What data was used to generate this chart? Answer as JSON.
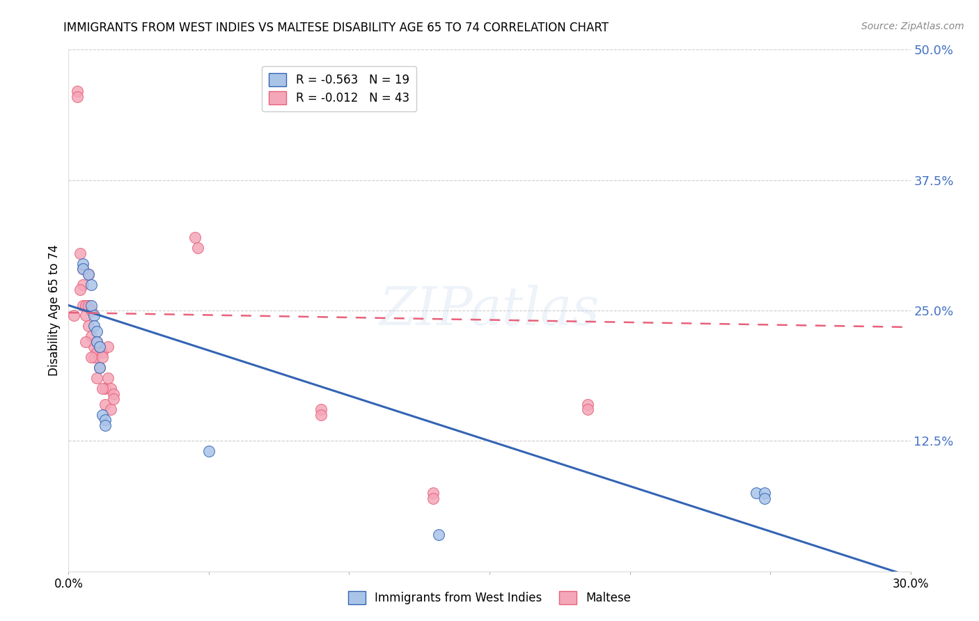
{
  "title": "IMMIGRANTS FROM WEST INDIES VS MALTESE DISABILITY AGE 65 TO 74 CORRELATION CHART",
  "source": "Source: ZipAtlas.com",
  "ylabel": "Disability Age 65 to 74",
  "xlim": [
    0.0,
    0.3
  ],
  "ylim": [
    0.0,
    0.5
  ],
  "yticks": [
    0.0,
    0.125,
    0.25,
    0.375,
    0.5
  ],
  "yticklabels": [
    "",
    "12.5%",
    "25.0%",
    "37.5%",
    "50.0%"
  ],
  "xticks": [
    0.0,
    0.05,
    0.1,
    0.15,
    0.2,
    0.25,
    0.3
  ],
  "xticklabels": [
    "0.0%",
    "",
    "",
    "",
    "",
    "",
    "30.0%"
  ],
  "west_indies_R": -0.563,
  "west_indies_N": 19,
  "maltese_R": -0.012,
  "maltese_N": 43,
  "west_indies_color": "#aac4e8",
  "maltese_color": "#f4a7b9",
  "west_indies_line_color": "#3464b4",
  "maltese_line_color": "#e8607a",
  "watermark": "ZIPatlas",
  "wi_line_x0": 0.0,
  "wi_line_y0": 0.255,
  "wi_line_x1": 0.3,
  "wi_line_y1": -0.005,
  "m_line_x0": 0.0,
  "m_line_y0": 0.248,
  "m_line_x1": 0.3,
  "m_line_y1": 0.234,
  "west_indies_x": [
    0.005,
    0.005,
    0.007,
    0.008,
    0.008,
    0.009,
    0.009,
    0.01,
    0.01,
    0.011,
    0.011,
    0.012,
    0.013,
    0.013,
    0.05,
    0.245,
    0.248,
    0.248,
    0.132
  ],
  "west_indies_y": [
    0.295,
    0.29,
    0.285,
    0.275,
    0.255,
    0.245,
    0.235,
    0.23,
    0.22,
    0.215,
    0.195,
    0.15,
    0.145,
    0.14,
    0.115,
    0.075,
    0.075,
    0.07,
    0.035
  ],
  "maltese_x": [
    0.003,
    0.003,
    0.004,
    0.005,
    0.005,
    0.005,
    0.006,
    0.006,
    0.007,
    0.007,
    0.007,
    0.008,
    0.008,
    0.009,
    0.009,
    0.01,
    0.01,
    0.011,
    0.011,
    0.012,
    0.012,
    0.013,
    0.013,
    0.014,
    0.014,
    0.015,
    0.016,
    0.045,
    0.046,
    0.09,
    0.09,
    0.13,
    0.13,
    0.185,
    0.185,
    0.002,
    0.004,
    0.006,
    0.008,
    0.01,
    0.012,
    0.015,
    0.016
  ],
  "maltese_y": [
    0.46,
    0.455,
    0.305,
    0.29,
    0.275,
    0.255,
    0.255,
    0.245,
    0.285,
    0.255,
    0.235,
    0.25,
    0.225,
    0.215,
    0.205,
    0.22,
    0.21,
    0.215,
    0.195,
    0.21,
    0.205,
    0.175,
    0.16,
    0.215,
    0.185,
    0.175,
    0.17,
    0.32,
    0.31,
    0.155,
    0.15,
    0.075,
    0.07,
    0.16,
    0.155,
    0.245,
    0.27,
    0.22,
    0.205,
    0.185,
    0.175,
    0.155,
    0.165
  ]
}
